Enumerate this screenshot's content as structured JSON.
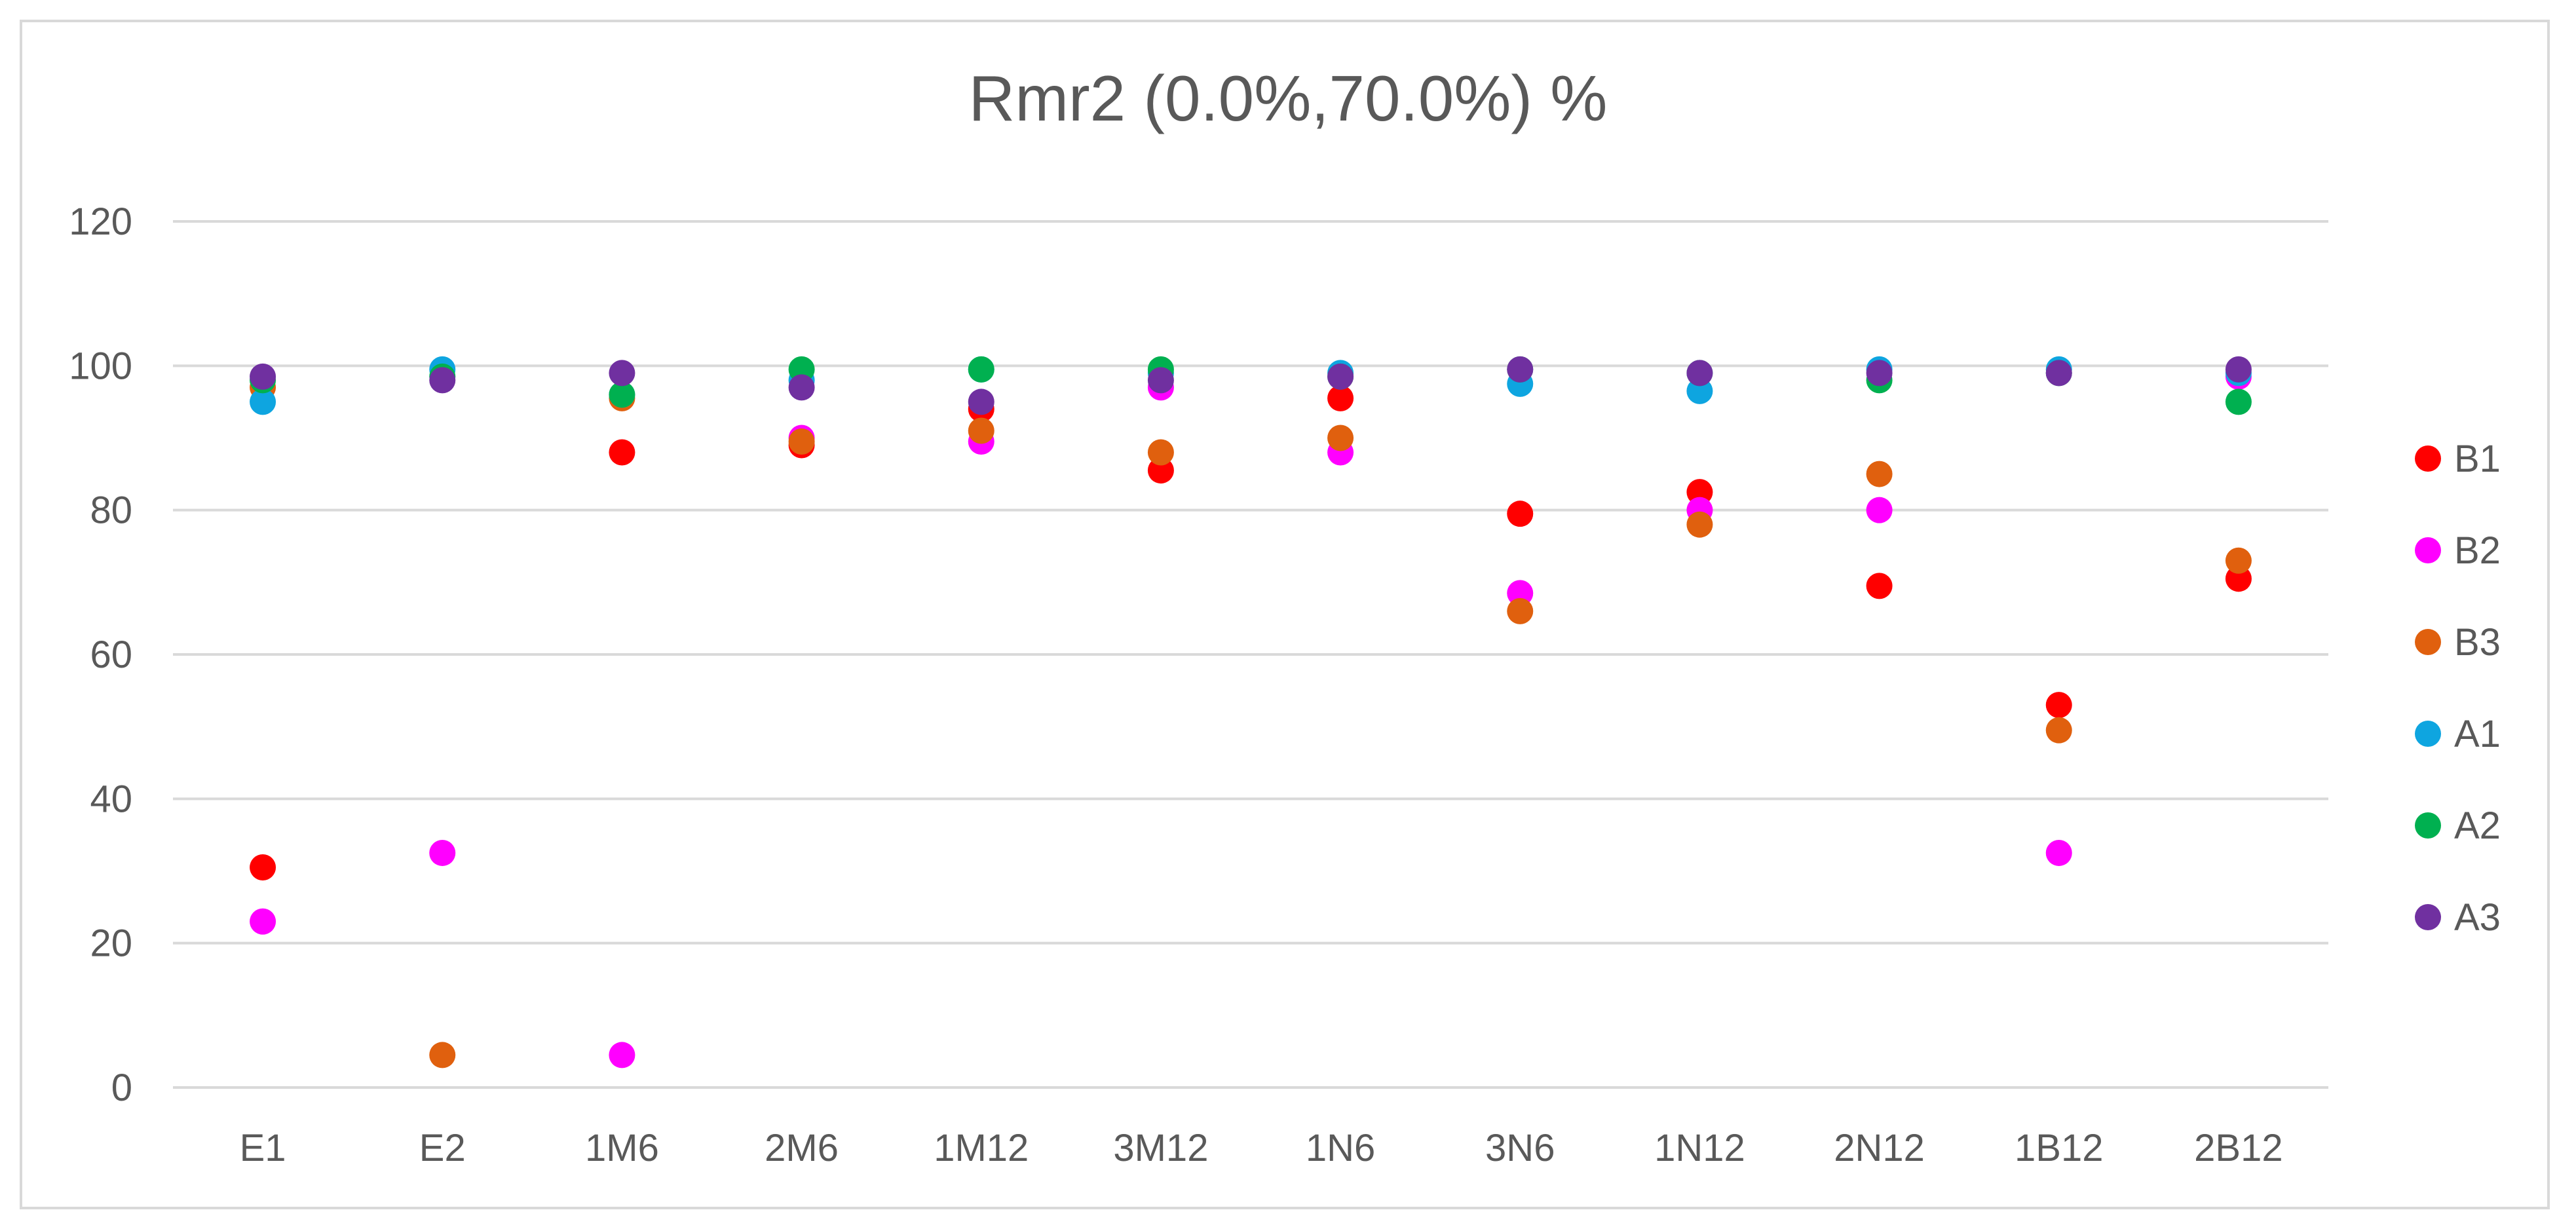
{
  "chart_data": {
    "type": "scatter",
    "title": "Rmr2 (0.0%,70.0%)  %",
    "xlabel": "",
    "ylabel": "",
    "categories": [
      "E1",
      "E2",
      "1M6",
      "2M6",
      "1M12",
      "3M12",
      "1N6",
      "3N6",
      "1N12",
      "2N12",
      "1B12",
      "2B12"
    ],
    "ylim": [
      0,
      120
    ],
    "yticks": [
      0,
      20,
      40,
      60,
      80,
      100,
      120
    ],
    "grid": true,
    "legend": "right",
    "series": [
      {
        "name": "B1",
        "color": "#ff0000",
        "values": [
          30.5,
          null,
          88,
          89,
          94,
          85.5,
          95.5,
          79.5,
          82.5,
          69.5,
          53,
          70.5
        ]
      },
      {
        "name": "B2",
        "color": "#ff00ff",
        "values": [
          23,
          32.5,
          4.5,
          90,
          89.5,
          97,
          88,
          68.5,
          80,
          80,
          32.5,
          98.5
        ]
      },
      {
        "name": "B3",
        "color": "#e0600e",
        "values": [
          97,
          4.5,
          95.5,
          89.5,
          91,
          88,
          90,
          66,
          78,
          85,
          49.5,
          73
        ]
      },
      {
        "name": "A1",
        "color": "#0ea5e0",
        "values": [
          95,
          99.5,
          96,
          98,
          99.5,
          99,
          99,
          97.5,
          96.5,
          99.5,
          99.5,
          99
        ]
      },
      {
        "name": "A2",
        "color": "#00b050",
        "values": [
          98,
          98.5,
          96,
          99.5,
          99.5,
          99.5,
          98.5,
          99.5,
          99,
          98,
          99,
          95
        ]
      },
      {
        "name": "A3",
        "color": "#7030a0",
        "values": [
          98.5,
          98,
          99,
          97,
          95,
          98,
          98.5,
          99.5,
          99,
          99,
          99,
          99.5
        ]
      }
    ]
  }
}
